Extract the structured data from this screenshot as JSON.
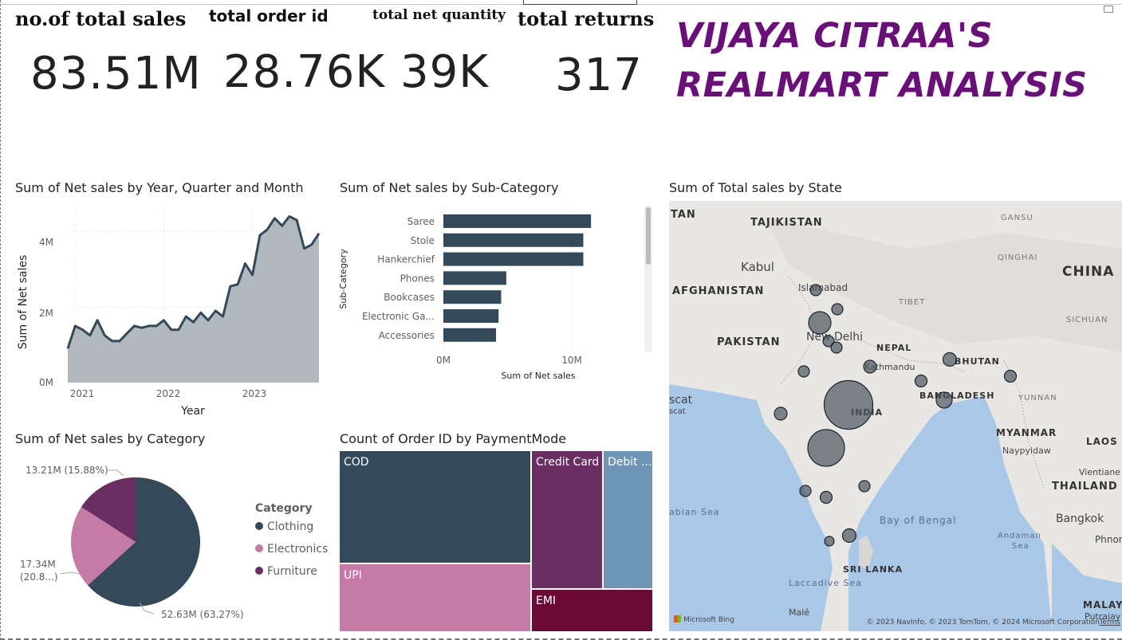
{
  "kpis": [
    {
      "title": "no.of total sales",
      "value": "83.51M"
    },
    {
      "title": "total order id",
      "value": "28.76K"
    },
    {
      "title": "total net quantity",
      "value": "39K"
    },
    {
      "title": "total returns",
      "value": "317"
    }
  ],
  "brand": {
    "line1": "VIJAYA CITRAA'S",
    "line2": "REALMART ANALYSIS",
    "color": "#6a0e7a"
  },
  "line_chart": {
    "title": "Sum of Net sales by Year, Quarter and Month",
    "ylabel": "Sum of Net sales",
    "xlabel": "Year",
    "yticks": [
      "0M",
      "2M",
      "4M"
    ],
    "xticks": [
      "2021",
      "2022",
      "2023"
    ]
  },
  "bar_chart": {
    "title": "Sum of Net sales by Sub-Category",
    "ylabel": "Sub-Category",
    "xlabel": "Sum of Net sales",
    "xticks": [
      "0M",
      "10M"
    ]
  },
  "pie_chart": {
    "title": "Sum of Net sales by Category",
    "legend_title": "Category",
    "legend": [
      "Clothing",
      "Electronics",
      "Furniture"
    ],
    "labels": {
      "furniture": "13.21M (15.88%)",
      "electronics_1": "17.34M",
      "electronics_2": "(20.8...)",
      "clothing": "52.63M (63.27%)"
    }
  },
  "treemap": {
    "title": "Count of Order ID by PaymentMode",
    "tiles": {
      "cod": "COD",
      "credit": "Credit Card",
      "debit": "Debit ...",
      "upi": "UPI",
      "emi": "EMI"
    }
  },
  "map": {
    "title": "Sum of Total sales by State",
    "labels": {
      "tan": "TAN",
      "tajikistan": "TAJIKISTAN",
      "kabul": "Kabul",
      "afghanistan": "AFGHANISTAN",
      "islamabad": "Islamabad",
      "pakistan": "PAKISTAN",
      "newdelhi": "New Delhi",
      "nepal": "NEPAL",
      "kathmandu": "Kathmandu",
      "bhutan": "BHUTAN",
      "bangladesh": "BANGLADESH",
      "india": "INDIA",
      "china": "CHINA",
      "gansu": "GANSU",
      "qinghai": "QINGHAI",
      "tibet": "TIBET",
      "sichuan": "SICHUAN",
      "yunnan": "YUNNAN",
      "myanmar": "MYANMAR",
      "naypyidaw": "Naypyidaw",
      "laos": "LAOS",
      "vientiane": "Vientiane",
      "thailand": "THAILAND",
      "bangkok": "Bangkok",
      "phnom": "Phnom",
      "muscat1": "scat",
      "muscat2": "scat",
      "arabiansea": "abian Sea",
      "bayofbengal": "Bay of Bengal",
      "andaman1": "Andaman",
      "andaman2": "Sea",
      "srilanka": "SRI LANKA",
      "laccadive": "Laccadive Sea",
      "male": "Malé",
      "malaysia": "MALAYSIA",
      "putrajaya": "Putrajay"
    },
    "bing": "Microsoft Bing",
    "copyright": "© 2023 NavInfo, © 2023 TomTom, © 2024 Microsoft Corporation",
    "terms": "Terms"
  },
  "chart_data": [
    {
      "type": "area",
      "title": "Sum of Net sales by Year, Quarter and Month",
      "xlabel": "Year",
      "ylabel": "Sum of Net sales",
      "x": [
        "2020-12",
        "2021-01",
        "2021-02",
        "2021-03",
        "2021-04",
        "2021-05",
        "2021-06",
        "2021-07",
        "2021-08",
        "2021-09",
        "2021-10",
        "2021-11",
        "2021-12",
        "2022-01",
        "2022-02",
        "2022-03",
        "2022-04",
        "2022-05",
        "2022-06",
        "2022-07",
        "2022-08",
        "2022-09",
        "2022-10",
        "2022-11",
        "2022-12",
        "2023-01",
        "2023-02",
        "2023-03",
        "2023-04",
        "2023-05",
        "2023-06",
        "2023-07",
        "2023-08",
        "2023-09",
        "2023-10"
      ],
      "values": [
        0.9,
        1.5,
        1.4,
        1.25,
        1.65,
        1.25,
        1.1,
        1.1,
        1.3,
        1.5,
        1.45,
        1.5,
        1.5,
        1.65,
        1.4,
        1.4,
        1.75,
        1.6,
        1.85,
        1.65,
        1.9,
        1.75,
        2.55,
        2.6,
        3.15,
        2.85,
        3.9,
        4.05,
        4.35,
        4.15,
        4.4,
        4.3,
        3.55,
        3.65,
        3.95
      ],
      "values_unit": "M",
      "ylim": [
        0,
        4.6
      ],
      "grid": true
    },
    {
      "type": "bar",
      "orientation": "horizontal",
      "title": "Sum of Net sales by Sub-Category",
      "xlabel": "Sum of Net sales",
      "ylabel": "Sub-Category",
      "categories": [
        "Saree",
        "Stole",
        "Hankerchief",
        "Phones",
        "Bookcases",
        "Electronic Ga...",
        "Accessories"
      ],
      "values": [
        11.5,
        10.9,
        10.9,
        4.9,
        4.5,
        4.3,
        4.1
      ],
      "values_unit": "M",
      "xlim": [
        0,
        12.5
      ],
      "color": "#34495a"
    },
    {
      "type": "pie",
      "title": "Sum of Net sales by Category",
      "categories": [
        "Clothing",
        "Electronics",
        "Furniture"
      ],
      "values": [
        52.63,
        17.34,
        13.21
      ],
      "values_unit": "M",
      "colors": [
        "#34495a",
        "#c57ba5",
        "#6b2e63"
      ],
      "legend": "right"
    },
    {
      "type": "treemap",
      "title": "Count of Order ID by PaymentMode",
      "categories": [
        "COD",
        "UPI",
        "Credit Card",
        "EMI",
        "Debit ..."
      ],
      "values": [
        9300,
        5200,
        3600,
        1600,
        2300
      ],
      "colors": [
        "#34495a",
        "#c57ba5",
        "#6b2e63",
        "#6b0a36",
        "#6e95b5"
      ]
    },
    {
      "type": "scatter",
      "subtype": "bubble-map",
      "title": "Sum of Total sales by State",
      "values": [
        8,
        8,
        22,
        8,
        8,
        8,
        10,
        11,
        9,
        9,
        14,
        55,
        40,
        10,
        8,
        9,
        8,
        11,
        6
      ],
      "values_unit": "relative bubble size"
    }
  ]
}
